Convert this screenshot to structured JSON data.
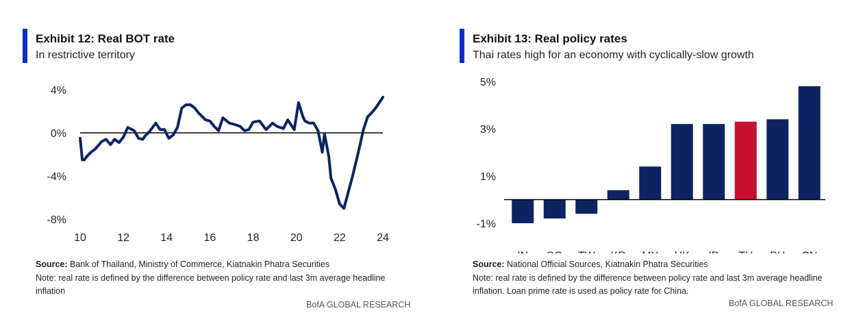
{
  "left": {
    "title": "Exhibit 12: Real BOT rate",
    "subtitle": "In restrictive territory",
    "source_label": "Source:",
    "source_text": " Bank of Thailand, Ministry of Commerce, Kiatnakin Phatra Securities",
    "note_line1": "Note: real rate is defined by the difference between policy rate and last 3m average headline",
    "note_line2": "inflation",
    "brand": "BofA GLOBAL RESEARCH",
    "accent_color": "#0a2bd1"
  },
  "right": {
    "title": "Exhibit 13: Real policy rates",
    "subtitle": "Thai rates high for an economy with cyclically-slow growth",
    "source_label": "Source:",
    "source_text": " National Official Sources, Kiatnakin Phatra Securities",
    "note_line1": "Note: real rate is defined by the difference between policy rate and last 3m average headline",
    "note_line2": "inflation. Loan prime rate is used as policy rate for China.",
    "brand": "BofA GLOBAL RESEARCH",
    "accent_color": "#0a2bd1"
  },
  "chart_data": [
    {
      "type": "line",
      "title": "Exhibit 12: Real BOT rate",
      "subtitle": "In restrictive territory",
      "xlabel": "",
      "ylabel": "",
      "x_ticks": [
        "10",
        "12",
        "14",
        "16",
        "18",
        "20",
        "22",
        "24"
      ],
      "y_ticks": [
        "4%",
        "0%",
        "-4%",
        "-8%"
      ],
      "xlim": [
        2010,
        2024
      ],
      "ylim": [
        -8,
        4
      ],
      "grid": false,
      "series_color": "#0d2463",
      "series": [
        {
          "x": [
            2010.0,
            2010.1,
            2010.2,
            2010.3,
            2010.5,
            2010.7,
            2011.0,
            2011.2,
            2011.4,
            2011.6,
            2011.8,
            2012.0,
            2012.2,
            2012.5,
            2012.7,
            2012.9,
            2013.0,
            2013.2,
            2013.5,
            2013.7,
            2013.9,
            2014.1,
            2014.3,
            2014.5,
            2014.7,
            2014.9,
            2015.1,
            2015.3,
            2015.5,
            2015.8,
            2016.0,
            2016.2,
            2016.4,
            2016.6,
            2016.9,
            2017.1,
            2017.4,
            2017.6,
            2017.8,
            2018.0,
            2018.3,
            2018.6,
            2018.9,
            2019.1,
            2019.4,
            2019.6,
            2019.9,
            2020.1,
            2020.3,
            2020.4,
            2020.5,
            2020.6,
            2020.8,
            2021.0,
            2021.2,
            2021.3,
            2021.5,
            2021.6,
            2021.8,
            2022.0,
            2022.2,
            2022.4,
            2022.6,
            2022.9,
            2023.1,
            2023.3,
            2023.5,
            2023.7,
            2023.9,
            2024.0
          ],
          "values": [
            -0.5,
            -2.5,
            -2.5,
            -2.2,
            -1.8,
            -1.5,
            -0.8,
            -0.6,
            -1.1,
            -0.6,
            -0.9,
            -0.4,
            0.5,
            0.2,
            -0.5,
            -0.6,
            -0.3,
            0.1,
            0.9,
            0.3,
            0.3,
            -0.5,
            -0.2,
            0.5,
            2.3,
            2.6,
            2.6,
            2.3,
            1.8,
            1.2,
            1.1,
            0.6,
            0.2,
            1.4,
            0.9,
            0.8,
            0.6,
            0.2,
            0.3,
            1.0,
            1.1,
            0.3,
            0.9,
            0.6,
            0.4,
            1.2,
            0.3,
            2.8,
            1.5,
            1.1,
            1.0,
            0.9,
            0.9,
            0.2,
            -1.8,
            -0.1,
            -2.2,
            -4.2,
            -5.2,
            -6.6,
            -7.0,
            -5.5,
            -4.0,
            -1.5,
            0.3,
            1.5,
            1.9,
            2.4,
            3.0,
            3.3
          ]
        }
      ]
    },
    {
      "type": "bar",
      "title": "Exhibit 13: Real policy rates",
      "subtitle": "Thai rates high for an economy with cyclically-slow growth",
      "xlabel": "",
      "ylabel": "",
      "categories": [
        "IN",
        "SG",
        "TW",
        "KR",
        "MY",
        "HK",
        "ID",
        "TH",
        "PH",
        "CN"
      ],
      "values": [
        -1.0,
        -0.8,
        -0.6,
        0.4,
        1.4,
        3.2,
        3.2,
        3.3,
        3.4,
        4.8
      ],
      "colors": [
        "#0d2463",
        "#0d2463",
        "#0d2463",
        "#0d2463",
        "#0d2463",
        "#0d2463",
        "#0d2463",
        "#c8102e",
        "#0d2463",
        "#0d2463"
      ],
      "y_ticks": [
        "5%",
        "3%",
        "1%",
        "-1%"
      ],
      "ylim": [
        -1.5,
        5.0
      ],
      "grid": false
    }
  ]
}
